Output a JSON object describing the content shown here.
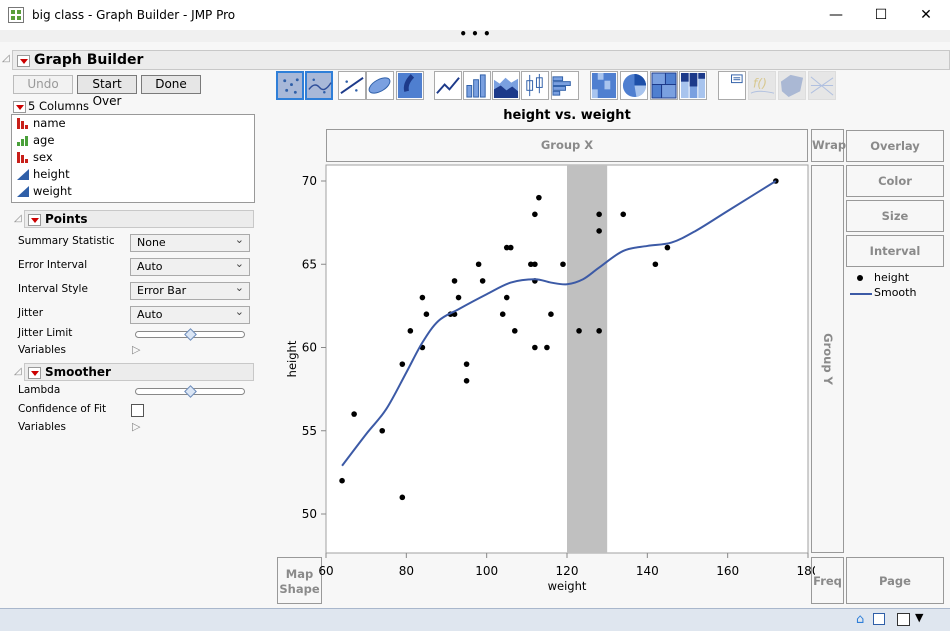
{
  "window": {
    "title": "big class - Graph Builder - JMP Pro",
    "more": "• • •"
  },
  "panel": {
    "title": "Graph Builder",
    "undo": "Undo",
    "start_over": "Start Over",
    "done": "Done"
  },
  "columns": {
    "header": "5 Columns",
    "items": [
      {
        "name": "name",
        "type": "nominal"
      },
      {
        "name": "age",
        "type": "ordinal"
      },
      {
        "name": "sex",
        "type": "nominal"
      },
      {
        "name": "height",
        "type": "continuous"
      },
      {
        "name": "weight",
        "type": "continuous"
      }
    ]
  },
  "points": {
    "title": "Points",
    "summary_statistic_label": "Summary Statistic",
    "summary_statistic": "None",
    "error_interval_label": "Error Interval",
    "error_interval": "Auto",
    "interval_style_label": "Interval Style",
    "interval_style": "Error Bar",
    "jitter_label": "Jitter",
    "jitter": "Auto",
    "jitter_limit_label": "Jitter Limit",
    "jitter_limit": 0.5,
    "variables_label": "Variables"
  },
  "smoother": {
    "title": "Smoother",
    "lambda_label": "Lambda",
    "lambda": 0.5,
    "confidence_label": "Confidence of Fit",
    "confidence": false,
    "variables_label": "Variables"
  },
  "toolbar": {
    "icons": [
      "points-icon",
      "smoother-icon",
      "line-of-fit-icon",
      "ellipse-icon",
      "contour-icon",
      "line-icon",
      "bar-icon",
      "area-icon",
      "box-plot-icon",
      "histogram-icon",
      "heatmap-icon",
      "pie-icon",
      "treemap-icon",
      "mosaic-icon",
      "caption-box-icon",
      "formula-icon",
      "map-shapes-icon",
      "parallel-icon"
    ],
    "selected": [
      "points-icon",
      "smoother-icon"
    ]
  },
  "zones": {
    "group_x": "Group X",
    "wrap": "Wrap",
    "group_y": "Group Y",
    "overlay": "Overlay",
    "color": "Color",
    "size": "Size",
    "interval": "Interval",
    "map_shape_1": "Map",
    "map_shape_2": "Shape",
    "freq": "Freq",
    "page": "Page"
  },
  "legend": {
    "points": "height",
    "smooth": "Smooth"
  },
  "chart_data": {
    "type": "scatter",
    "title": "height vs. weight",
    "xlabel": "weight",
    "ylabel": "height",
    "xlim": [
      60,
      180
    ],
    "ylim": [
      49,
      71.5
    ],
    "xticks": [
      "60",
      "80",
      "100",
      "120",
      "140",
      "160",
      "180"
    ],
    "yticks": [
      "50",
      "55",
      "60",
      "65",
      "70"
    ],
    "highlight_band": [
      120,
      130
    ],
    "line_color": "#3c5aa6",
    "band_color": "#c0c0c0",
    "points": [
      [
        64,
        52
      ],
      [
        67,
        56
      ],
      [
        74,
        55
      ],
      [
        79,
        51
      ],
      [
        79,
        59
      ],
      [
        81,
        61
      ],
      [
        84,
        60
      ],
      [
        84,
        63
      ],
      [
        85,
        62
      ],
      [
        91,
        62
      ],
      [
        92,
        62
      ],
      [
        92,
        64
      ],
      [
        93,
        63
      ],
      [
        95,
        59
      ],
      [
        95,
        58
      ],
      [
        98,
        65
      ],
      [
        99,
        64
      ],
      [
        104,
        62
      ],
      [
        105,
        63
      ],
      [
        105,
        66
      ],
      [
        106,
        66
      ],
      [
        107,
        61
      ],
      [
        111,
        65
      ],
      [
        112,
        65
      ],
      [
        112,
        64
      ],
      [
        112,
        68
      ],
      [
        113,
        69
      ],
      [
        112,
        60
      ],
      [
        115,
        60
      ],
      [
        116,
        62
      ],
      [
        119,
        65
      ],
      [
        123,
        61
      ],
      [
        128,
        61
      ],
      [
        128,
        67
      ],
      [
        128,
        68
      ],
      [
        134,
        68
      ],
      [
        142,
        65
      ],
      [
        145,
        66
      ],
      [
        172,
        70
      ]
    ],
    "smooth": [
      [
        64,
        52.9
      ],
      [
        70,
        54.8
      ],
      [
        75,
        56.3
      ],
      [
        80,
        58.5
      ],
      [
        84,
        60.3
      ],
      [
        88,
        61.6
      ],
      [
        93,
        62.3
      ],
      [
        100,
        63.2
      ],
      [
        106,
        63.9
      ],
      [
        112,
        64.1
      ],
      [
        116,
        63.9
      ],
      [
        120,
        63.8
      ],
      [
        124,
        64.1
      ],
      [
        128,
        64.8
      ],
      [
        134,
        65.8
      ],
      [
        140,
        66.1
      ],
      [
        146,
        66.3
      ],
      [
        152,
        67
      ],
      [
        160,
        68.2
      ],
      [
        172,
        70
      ]
    ]
  }
}
